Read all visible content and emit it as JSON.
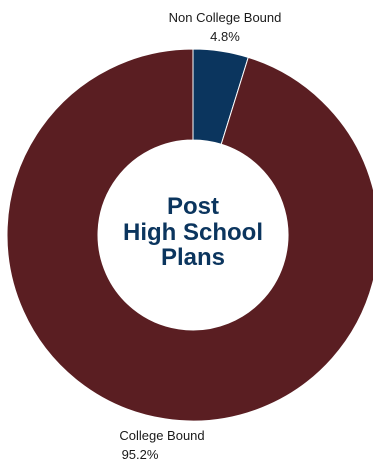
{
  "chart_data": {
    "type": "pie",
    "title_lines": [
      "Post",
      "High School",
      "Plans"
    ],
    "slices": [
      {
        "name": "Non College Bound",
        "value": 4.8,
        "label": "4.8%",
        "color": "#0b355e"
      },
      {
        "name": "College Bound",
        "value": 95.2,
        "label": "95.2%",
        "color": "#5a1e22"
      }
    ],
    "donut": true
  }
}
